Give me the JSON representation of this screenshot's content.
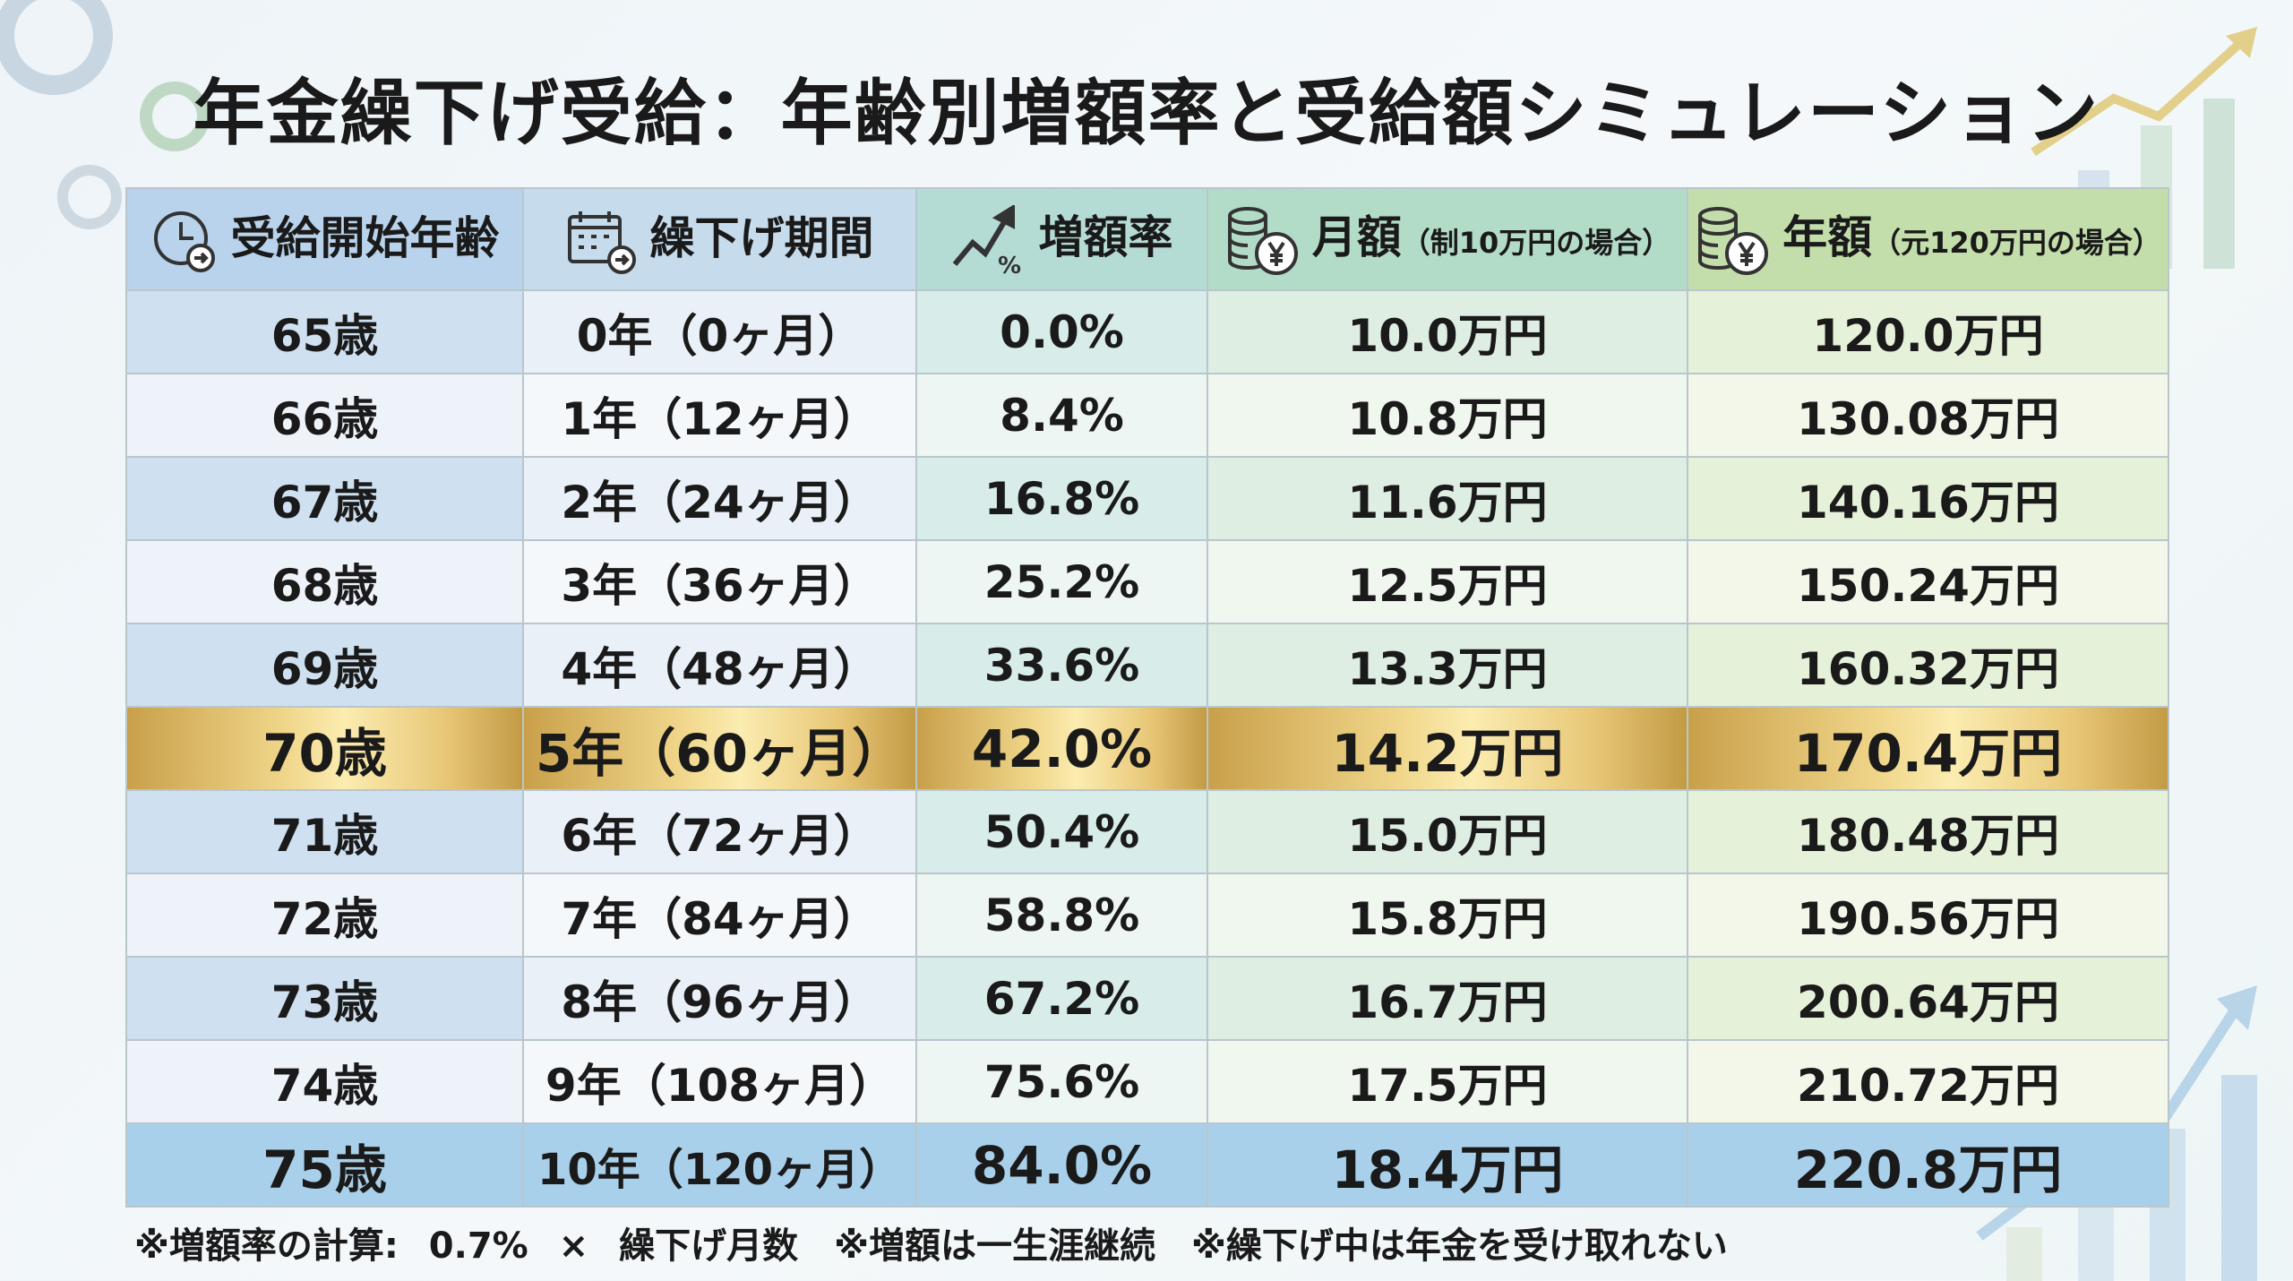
{
  "title": "年金繰下げ受給：年齢別増額率と受給額シミュレーション",
  "headers": [
    {
      "label": "受給開始年齢",
      "sub": "",
      "icon": "clock-arrow-icon"
    },
    {
      "label": "繰下げ期間",
      "sub": "",
      "icon": "calendar-icon"
    },
    {
      "label": "増額率",
      "sub": "",
      "icon": "trend-up-percent-icon"
    },
    {
      "label": "月額",
      "sub": "（制10万円の場合）",
      "icon": "coins-yen-icon"
    },
    {
      "label": "年額",
      "sub": "（元120万円の場合）",
      "icon": "coins-yen-icon"
    }
  ],
  "rows": [
    [
      "65歳",
      "0年（0ヶ月）",
      "0.0%",
      "10.0万円",
      "120.0万円"
    ],
    [
      "66歳",
      "1年（12ヶ月）",
      "8.4%",
      "10.8万円",
      "130.08万円"
    ],
    [
      "67歳",
      "2年（24ヶ月）",
      "16.8%",
      "11.6万円",
      "140.16万円"
    ],
    [
      "68歳",
      "3年（36ヶ月）",
      "25.2%",
      "12.5万円",
      "150.24万円"
    ],
    [
      "69歳",
      "4年（48ヶ月）",
      "33.6%",
      "13.3万円",
      "160.32万円"
    ],
    [
      "70歳",
      "5年（60ヶ月）",
      "42.0%",
      "14.2万円",
      "170.4万円"
    ],
    [
      "71歳",
      "6年（72ヶ月）",
      "50.4%",
      "15.0万円",
      "180.48万円"
    ],
    [
      "72歳",
      "7年（84ヶ月）",
      "58.8%",
      "15.8万円",
      "190.56万円"
    ],
    [
      "73歳",
      "8年（96ヶ月）",
      "67.2%",
      "16.7万円",
      "200.64万円"
    ],
    [
      "74歳",
      "9年（108ヶ月）",
      "75.6%",
      "17.5万円",
      "210.72万円"
    ],
    [
      "75歳",
      "10年（120ヶ月）",
      "84.0%",
      "18.4万円",
      "220.8万円"
    ]
  ],
  "notes": "※増額率の計算: 0.7% × 繰下げ月数　※増額は一生涯継続　※繰下げ中は年金を受け取れない",
  "colors": {
    "highlight": "#e8c878",
    "last_row": "#a9d0ea"
  }
}
